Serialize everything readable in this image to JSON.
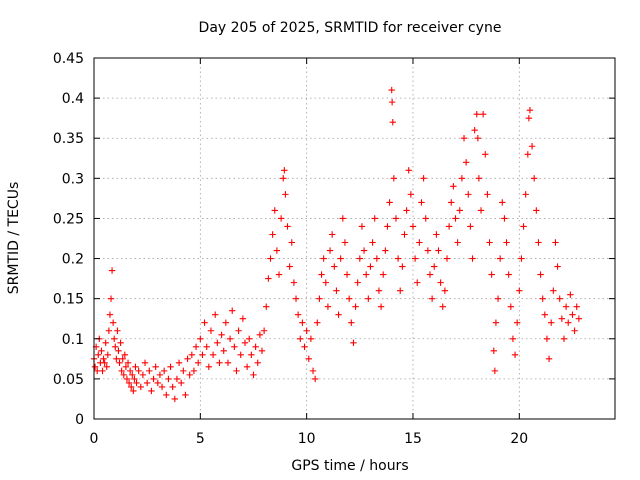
{
  "chart_data": {
    "type": "scatter",
    "title": "Day 205 of 2025, SRMTID for receiver cyne",
    "xlabel": "GPS time / hours",
    "ylabel": "SRMTID / TECUs",
    "xlim": [
      0,
      24.5
    ],
    "ylim": [
      0,
      0.45
    ],
    "x_ticks": [
      0,
      5,
      10,
      15,
      20
    ],
    "x_tick_labels": [
      "0",
      "5",
      "10",
      "15",
      "20"
    ],
    "y_ticks": [
      0,
      0.05,
      0.1,
      0.15,
      0.2,
      0.25,
      0.3,
      0.35,
      0.4,
      0.45
    ],
    "y_tick_labels": [
      "0",
      "0.05",
      "0.1",
      "0.15",
      "0.2",
      "0.25",
      "0.3",
      "0.35",
      "0.4",
      "0.45"
    ],
    "grid": true,
    "marker": "plus",
    "color": "#ff0000",
    "series": [
      {
        "name": "SRMTID",
        "points": [
          [
            0.0,
            0.075
          ],
          [
            0.05,
            0.065
          ],
          [
            0.1,
            0.09
          ],
          [
            0.15,
            0.06
          ],
          [
            0.2,
            0.08
          ],
          [
            0.25,
            0.1
          ],
          [
            0.3,
            0.07
          ],
          [
            0.35,
            0.085
          ],
          [
            0.4,
            0.06
          ],
          [
            0.45,
            0.075
          ],
          [
            0.5,
            0.07
          ],
          [
            0.55,
            0.095
          ],
          [
            0.6,
            0.065
          ],
          [
            0.65,
            0.08
          ],
          [
            0.7,
            0.11
          ],
          [
            0.75,
            0.13
          ],
          [
            0.8,
            0.15
          ],
          [
            0.85,
            0.185
          ],
          [
            0.9,
            0.12
          ],
          [
            0.95,
            0.1
          ],
          [
            1.0,
            0.09
          ],
          [
            1.05,
            0.075
          ],
          [
            1.1,
            0.11
          ],
          [
            1.15,
            0.085
          ],
          [
            1.2,
            0.07
          ],
          [
            1.25,
            0.095
          ],
          [
            1.3,
            0.06
          ],
          [
            1.35,
            0.075
          ],
          [
            1.4,
            0.055
          ],
          [
            1.45,
            0.08
          ],
          [
            1.5,
            0.065
          ],
          [
            1.55,
            0.05
          ],
          [
            1.6,
            0.07
          ],
          [
            1.65,
            0.045
          ],
          [
            1.7,
            0.06
          ],
          [
            1.75,
            0.04
          ],
          [
            1.8,
            0.055
          ],
          [
            1.85,
            0.035
          ],
          [
            1.9,
            0.05
          ],
          [
            1.95,
            0.065
          ],
          [
            2.0,
            0.045
          ],
          [
            2.1,
            0.06
          ],
          [
            2.2,
            0.04
          ],
          [
            2.3,
            0.055
          ],
          [
            2.4,
            0.07
          ],
          [
            2.5,
            0.045
          ],
          [
            2.6,
            0.06
          ],
          [
            2.7,
            0.035
          ],
          [
            2.8,
            0.05
          ],
          [
            2.9,
            0.065
          ],
          [
            3.0,
            0.045
          ],
          [
            3.1,
            0.055
          ],
          [
            3.2,
            0.04
          ],
          [
            3.3,
            0.06
          ],
          [
            3.4,
            0.03
          ],
          [
            3.5,
            0.05
          ],
          [
            3.6,
            0.065
          ],
          [
            3.7,
            0.04
          ],
          [
            3.8,
            0.025
          ],
          [
            3.9,
            0.05
          ],
          [
            4.0,
            0.07
          ],
          [
            4.1,
            0.045
          ],
          [
            4.2,
            0.06
          ],
          [
            4.3,
            0.03
          ],
          [
            4.4,
            0.075
          ],
          [
            4.5,
            0.055
          ],
          [
            4.6,
            0.08
          ],
          [
            4.7,
            0.06
          ],
          [
            4.8,
            0.09
          ],
          [
            4.9,
            0.07
          ],
          [
            5.0,
            0.1
          ],
          [
            5.1,
            0.08
          ],
          [
            5.2,
            0.12
          ],
          [
            5.3,
            0.09
          ],
          [
            5.4,
            0.065
          ],
          [
            5.5,
            0.11
          ],
          [
            5.6,
            0.08
          ],
          [
            5.7,
            0.13
          ],
          [
            5.8,
            0.095
          ],
          [
            5.9,
            0.07
          ],
          [
            6.0,
            0.105
          ],
          [
            6.1,
            0.085
          ],
          [
            6.2,
            0.12
          ],
          [
            6.3,
            0.07
          ],
          [
            6.4,
            0.1
          ],
          [
            6.5,
            0.135
          ],
          [
            6.6,
            0.09
          ],
          [
            6.7,
            0.06
          ],
          [
            6.8,
            0.11
          ],
          [
            6.9,
            0.08
          ],
          [
            7.0,
            0.125
          ],
          [
            7.1,
            0.095
          ],
          [
            7.2,
            0.065
          ],
          [
            7.3,
            0.1
          ],
          [
            7.4,
            0.08
          ],
          [
            7.5,
            0.055
          ],
          [
            7.6,
            0.09
          ],
          [
            7.7,
            0.07
          ],
          [
            7.8,
            0.105
          ],
          [
            7.9,
            0.085
          ],
          [
            8.0,
            0.11
          ],
          [
            8.1,
            0.14
          ],
          [
            8.2,
            0.175
          ],
          [
            8.3,
            0.2
          ],
          [
            8.4,
            0.23
          ],
          [
            8.5,
            0.26
          ],
          [
            8.6,
            0.21
          ],
          [
            8.7,
            0.18
          ],
          [
            8.8,
            0.25
          ],
          [
            8.9,
            0.3
          ],
          [
            8.95,
            0.31
          ],
          [
            9.0,
            0.28
          ],
          [
            9.1,
            0.24
          ],
          [
            9.2,
            0.19
          ],
          [
            9.3,
            0.22
          ],
          [
            9.4,
            0.17
          ],
          [
            9.5,
            0.15
          ],
          [
            9.6,
            0.13
          ],
          [
            9.7,
            0.1
          ],
          [
            9.8,
            0.12
          ],
          [
            9.9,
            0.09
          ],
          [
            10.0,
            0.11
          ],
          [
            10.1,
            0.075
          ],
          [
            10.2,
            0.1
          ],
          [
            10.3,
            0.06
          ],
          [
            10.4,
            0.05
          ],
          [
            10.5,
            0.12
          ],
          [
            10.6,
            0.15
          ],
          [
            10.7,
            0.18
          ],
          [
            10.8,
            0.2
          ],
          [
            10.9,
            0.17
          ],
          [
            11.0,
            0.14
          ],
          [
            11.1,
            0.21
          ],
          [
            11.2,
            0.23
          ],
          [
            11.3,
            0.19
          ],
          [
            11.4,
            0.16
          ],
          [
            11.5,
            0.13
          ],
          [
            11.6,
            0.2
          ],
          [
            11.7,
            0.25
          ],
          [
            11.8,
            0.22
          ],
          [
            11.9,
            0.18
          ],
          [
            12.0,
            0.15
          ],
          [
            12.1,
            0.12
          ],
          [
            12.2,
            0.095
          ],
          [
            12.3,
            0.14
          ],
          [
            12.4,
            0.17
          ],
          [
            12.5,
            0.2
          ],
          [
            12.6,
            0.24
          ],
          [
            12.7,
            0.21
          ],
          [
            12.8,
            0.18
          ],
          [
            12.9,
            0.15
          ],
          [
            13.0,
            0.19
          ],
          [
            13.1,
            0.22
          ],
          [
            13.2,
            0.25
          ],
          [
            13.3,
            0.2
          ],
          [
            13.4,
            0.16
          ],
          [
            13.5,
            0.14
          ],
          [
            13.6,
            0.18
          ],
          [
            13.7,
            0.21
          ],
          [
            13.8,
            0.24
          ],
          [
            13.9,
            0.27
          ],
          [
            14.0,
            0.41
          ],
          [
            14.02,
            0.395
          ],
          [
            14.05,
            0.37
          ],
          [
            14.1,
            0.3
          ],
          [
            14.2,
            0.25
          ],
          [
            14.3,
            0.2
          ],
          [
            14.4,
            0.16
          ],
          [
            14.5,
            0.19
          ],
          [
            14.6,
            0.23
          ],
          [
            14.7,
            0.26
          ],
          [
            14.8,
            0.31
          ],
          [
            14.9,
            0.28
          ],
          [
            15.0,
            0.24
          ],
          [
            15.1,
            0.2
          ],
          [
            15.2,
            0.17
          ],
          [
            15.3,
            0.22
          ],
          [
            15.4,
            0.27
          ],
          [
            15.5,
            0.3
          ],
          [
            15.6,
            0.25
          ],
          [
            15.7,
            0.21
          ],
          [
            15.8,
            0.18
          ],
          [
            15.9,
            0.15
          ],
          [
            16.0,
            0.19
          ],
          [
            16.1,
            0.23
          ],
          [
            16.2,
            0.21
          ],
          [
            16.3,
            0.17
          ],
          [
            16.4,
            0.14
          ],
          [
            16.5,
            0.16
          ],
          [
            16.6,
            0.2
          ],
          [
            16.7,
            0.24
          ],
          [
            16.8,
            0.27
          ],
          [
            16.9,
            0.29
          ],
          [
            17.0,
            0.25
          ],
          [
            17.1,
            0.22
          ],
          [
            17.2,
            0.26
          ],
          [
            17.3,
            0.3
          ],
          [
            17.4,
            0.35
          ],
          [
            17.5,
            0.32
          ],
          [
            17.6,
            0.28
          ],
          [
            17.7,
            0.24
          ],
          [
            17.8,
            0.2
          ],
          [
            17.9,
            0.36
          ],
          [
            18.0,
            0.38
          ],
          [
            18.05,
            0.35
          ],
          [
            18.1,
            0.3
          ],
          [
            18.2,
            0.26
          ],
          [
            18.3,
            0.38
          ],
          [
            18.4,
            0.33
          ],
          [
            18.5,
            0.28
          ],
          [
            18.6,
            0.22
          ],
          [
            18.7,
            0.18
          ],
          [
            18.8,
            0.085
          ],
          [
            18.85,
            0.06
          ],
          [
            18.9,
            0.12
          ],
          [
            19.0,
            0.15
          ],
          [
            19.1,
            0.2
          ],
          [
            19.2,
            0.27
          ],
          [
            19.3,
            0.25
          ],
          [
            19.4,
            0.22
          ],
          [
            19.5,
            0.18
          ],
          [
            19.6,
            0.14
          ],
          [
            19.7,
            0.1
          ],
          [
            19.8,
            0.08
          ],
          [
            19.9,
            0.12
          ],
          [
            20.0,
            0.16
          ],
          [
            20.1,
            0.2
          ],
          [
            20.2,
            0.24
          ],
          [
            20.3,
            0.28
          ],
          [
            20.4,
            0.33
          ],
          [
            20.45,
            0.375
          ],
          [
            20.5,
            0.385
          ],
          [
            20.6,
            0.34
          ],
          [
            20.7,
            0.3
          ],
          [
            20.8,
            0.26
          ],
          [
            20.9,
            0.22
          ],
          [
            21.0,
            0.18
          ],
          [
            21.1,
            0.15
          ],
          [
            21.2,
            0.13
          ],
          [
            21.3,
            0.1
          ],
          [
            21.4,
            0.075
          ],
          [
            21.5,
            0.12
          ],
          [
            21.6,
            0.16
          ],
          [
            21.7,
            0.22
          ],
          [
            21.8,
            0.19
          ],
          [
            21.9,
            0.15
          ],
          [
            22.0,
            0.125
          ],
          [
            22.1,
            0.1
          ],
          [
            22.2,
            0.14
          ],
          [
            22.3,
            0.12
          ],
          [
            22.4,
            0.155
          ],
          [
            22.5,
            0.13
          ],
          [
            22.6,
            0.11
          ],
          [
            22.7,
            0.14
          ],
          [
            22.8,
            0.125
          ]
        ]
      }
    ]
  }
}
